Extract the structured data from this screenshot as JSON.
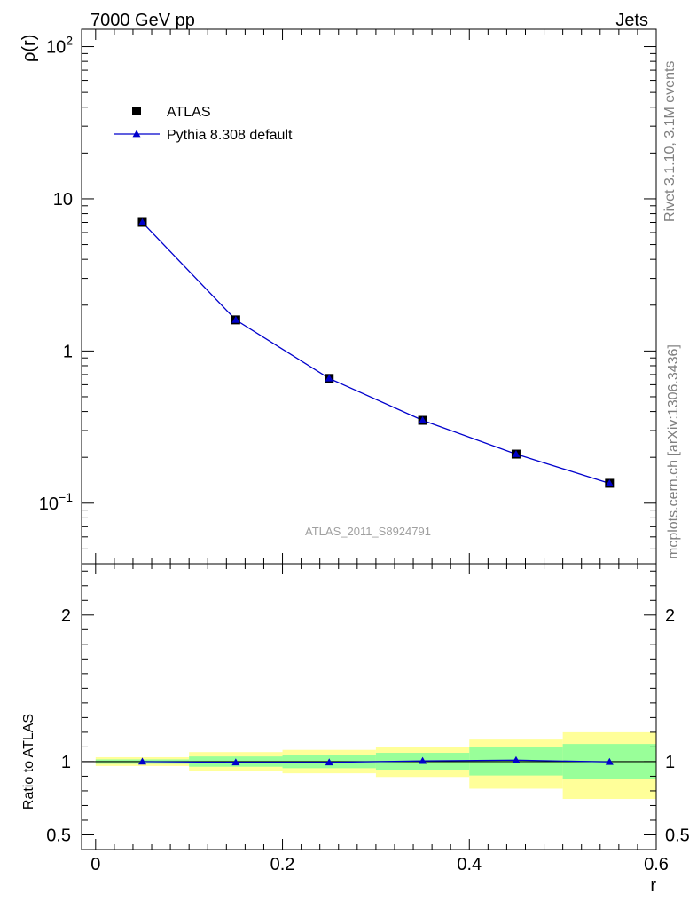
{
  "header": {
    "left": "7000 GeV pp",
    "right": "Jets"
  },
  "side_labels": {
    "rivet": "Rivet 3.1.10,  3.1M events",
    "mcplots": "mcplots.cern.ch [arXiv:1306.3436]"
  },
  "watermark": "ATLAS_2011_S8924791",
  "chart_data": [
    {
      "type": "scatter",
      "panel": "main",
      "ylabel": "ρ(r)",
      "yscale": "log",
      "ylim": [
        0.04,
        130
      ],
      "xlim": [
        -0.015,
        0.6
      ],
      "ytick_labels": [
        "10^-1",
        "1",
        "10",
        "10^2"
      ],
      "legend": {
        "placement": "top-left",
        "entries": [
          "ATLAS",
          "Pythia 8.308 default"
        ]
      },
      "series": [
        {
          "name": "ATLAS",
          "marker": "square",
          "color": "#000000",
          "x": [
            0.05,
            0.15,
            0.25,
            0.35,
            0.45,
            0.55
          ],
          "y": [
            7.0,
            1.6,
            0.66,
            0.35,
            0.21,
            0.135
          ]
        },
        {
          "name": "Pythia 8.308 default",
          "marker": "triangle",
          "color": "#0000cc",
          "x": [
            0.05,
            0.15,
            0.25,
            0.35,
            0.45,
            0.55
          ],
          "y": [
            7.0,
            1.6,
            0.66,
            0.35,
            0.21,
            0.135
          ]
        }
      ]
    },
    {
      "type": "line",
      "panel": "ratio",
      "ylabel": "Ratio to ATLAS",
      "xlabel": "r",
      "ylim": [
        0.4,
        2.35
      ],
      "xlim": [
        -0.015,
        0.6
      ],
      "ytick_labels": [
        "0.5",
        "1",
        "2"
      ],
      "xtick_labels": [
        "0",
        "0.2",
        "0.4",
        "0.6"
      ],
      "bands": {
        "bin_edges": [
          0.0,
          0.1,
          0.2,
          0.3,
          0.4,
          0.5,
          0.6
        ],
        "stat": {
          "color": "#99ff99",
          "lo": [
            0.985,
            0.965,
            0.955,
            0.945,
            0.905,
            0.88
          ],
          "hi": [
            1.015,
            1.035,
            1.045,
            1.06,
            1.1,
            1.12
          ]
        },
        "total": {
          "color": "#ffff99",
          "lo": [
            0.97,
            0.935,
            0.92,
            0.895,
            0.815,
            0.745
          ],
          "hi": [
            1.03,
            1.065,
            1.08,
            1.1,
            1.15,
            1.2
          ]
        }
      },
      "series": [
        {
          "name": "Pythia 8.308 default",
          "marker": "triangle",
          "color": "#0000cc",
          "x": [
            0.05,
            0.15,
            0.25,
            0.35,
            0.45,
            0.55
          ],
          "y": [
            1.0,
            0.995,
            0.995,
            1.005,
            1.01,
            0.998
          ]
        }
      ]
    }
  ]
}
